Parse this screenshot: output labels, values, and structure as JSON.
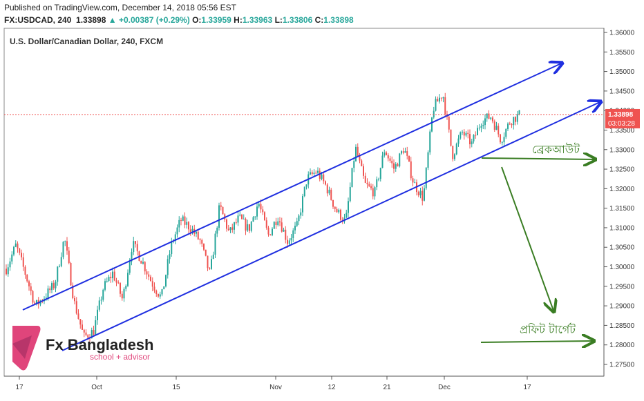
{
  "header": {
    "published": "Published on TradingView.com, December 14, 2018 05:56 EST",
    "symbol": "FX:USDCAD, 240",
    "last": "1.33898",
    "change": "▲ +0.00387 (+0.29%)",
    "o_label": "O:",
    "o_value": "1.33959",
    "h_label": "H:",
    "h_value": "1.33963",
    "l_label": "L:",
    "l_value": "1.33806",
    "c_label": "C:",
    "c_value": "1.33898"
  },
  "chart_data": {
    "type": "candlestick",
    "title": "U.S. Dollar/Canadian Dollar, 240, FXCM",
    "x_ticks": [
      "17",
      "Oct",
      "15",
      "Nov",
      "12",
      "21",
      "Dec",
      "17"
    ],
    "y_ticks": [
      "1.36000",
      "1.35500",
      "1.35000",
      "1.34500",
      "1.34000",
      "1.33500",
      "1.33000",
      "1.32500",
      "1.32000",
      "1.31500",
      "1.31000",
      "1.30500",
      "1.30000",
      "1.29500",
      "1.29000",
      "1.28500",
      "1.28000",
      "1.27500"
    ],
    "ylim": [
      1.2725,
      1.3605
    ],
    "last_price_label": "1.33898",
    "countdown_label": "03:03:28",
    "up_color": "#26a69a",
    "down_color": "#ef5350",
    "channel_color": "#1f2fe0",
    "annotation_color": "#3a7d23",
    "price_path": [
      1.2995,
      1.3055,
      1.298,
      1.29,
      1.2925,
      1.2955,
      1.3075,
      1.291,
      1.282,
      1.2835,
      1.2945,
      1.2985,
      1.2915,
      1.306,
      1.3015,
      1.296,
      1.292,
      1.3055,
      1.312,
      1.31,
      1.3065,
      1.298,
      1.3155,
      1.3085,
      1.3125,
      1.3095,
      1.3165,
      1.308,
      1.313,
      1.3065,
      1.3105,
      1.3225,
      1.3245,
      1.3205,
      1.3145,
      1.3115,
      1.3305,
      1.321,
      1.319,
      1.33,
      1.325,
      1.3305,
      1.3215,
      1.3175,
      1.3405,
      1.3445,
      1.3285,
      1.3345,
      1.3315,
      1.3375,
      1.3385,
      1.3325,
      1.3375,
      1.339
    ]
  },
  "annotations": {
    "breakout": "ব্রেকআউট",
    "profit_target": "প্রফিট টার্গেট"
  },
  "logo": {
    "name": "Fx Bangladesh",
    "tagline": "school + advisor"
  }
}
